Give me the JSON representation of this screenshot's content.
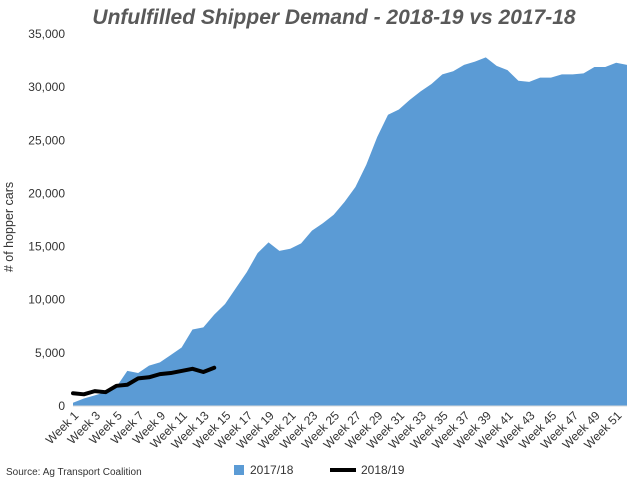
{
  "chart_data": {
    "type": "area",
    "title": "Unfulfilled Shipper Demand - 2018-19 vs 2017-18",
    "xlabel": "",
    "ylabel": "# of hopper cars",
    "ylim": [
      0,
      35000
    ],
    "y_ticks": [
      0,
      5000,
      10000,
      15000,
      20000,
      25000,
      30000,
      35000
    ],
    "y_tick_labels": [
      "0",
      "5,000",
      "10,000",
      "15,000",
      "20,000",
      "25,000",
      "30,000",
      "35,000"
    ],
    "x_tick_labels": [
      "Week 1",
      "Week 3",
      "Week 5",
      "Week 7",
      "Week 9",
      "Week 11",
      "Week 13",
      "Week 15",
      "Week 17",
      "Week 19",
      "Week 21",
      "Week 23",
      "Week 25",
      "Week 27",
      "Week 29",
      "Week 31",
      "Week 33",
      "Week 35",
      "Week 37",
      "Week 39",
      "Week 41",
      "Week 43",
      "Week 45",
      "Week 47",
      "Week 49",
      "Week 51"
    ],
    "weeks": [
      1,
      2,
      3,
      4,
      5,
      6,
      7,
      8,
      9,
      10,
      11,
      12,
      13,
      14,
      15,
      16,
      17,
      18,
      19,
      20,
      21,
      22,
      23,
      24,
      25,
      26,
      27,
      28,
      29,
      30,
      31,
      32,
      33,
      34,
      35,
      36,
      37,
      38,
      39,
      40,
      41,
      42,
      43,
      44,
      45,
      46,
      47,
      48,
      49,
      50,
      51,
      52
    ],
    "series": [
      {
        "name": "2017/18",
        "kind": "area",
        "color": "#5b9bd5",
        "values": [
          300,
          700,
          1000,
          1300,
          1800,
          3300,
          3100,
          3800,
          4100,
          4800,
          5500,
          7200,
          7400,
          8600,
          9600,
          11100,
          12600,
          14400,
          15400,
          14600,
          14800,
          15300,
          16500,
          17200,
          18000,
          19200,
          20600,
          22700,
          25300,
          27400,
          27900,
          28800,
          29600,
          30300,
          31200,
          31500,
          32100,
          32400,
          32800,
          32000,
          31600,
          30600,
          30500,
          30900,
          30900,
          31200,
          31200,
          31300,
          31900,
          31900,
          32300,
          32100
        ]
      },
      {
        "name": "2018/19",
        "kind": "line",
        "color": "#000000",
        "values": [
          1200,
          1100,
          1400,
          1300,
          1900,
          2000,
          2600,
          2700,
          3000,
          3100,
          3300,
          3500,
          3200,
          3600
        ]
      }
    ],
    "legend": {
      "position": "bottom",
      "entries": [
        "2017/18",
        "2018/19"
      ]
    },
    "grid": false,
    "source": "Source: Ag Transport Coalition"
  }
}
